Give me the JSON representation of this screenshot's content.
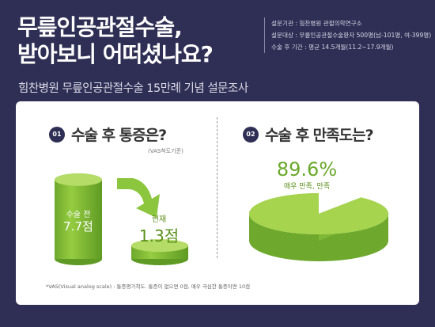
{
  "header": {
    "title_line1": "무릎인공관절수술,",
    "title_line2": "받아보니 어떠셨나요?",
    "subtitle": "힘찬병원 무릎인공관절수술 15만례 기념 설문조사",
    "meta": [
      "설문기관 : 힘찬병원 관절의학연구소",
      "설문대상 : 무릎인공관절수술환자 500명(남-101명, 여-399명)",
      "수술 후 기간 : 평균 14.5개월(11.2~17.9개월)"
    ]
  },
  "colors": {
    "background": "#2f2f56",
    "accent_green": "#8cc63f",
    "text_dark": "#333333"
  },
  "q1": {
    "badge": "01",
    "title": "수술 후 통증은?",
    "note": "(VAS척도기준)",
    "before_label": "수술 전",
    "before_value": "7.7점",
    "after_label": "현재",
    "after_value": "1.3점"
  },
  "q2": {
    "badge": "02",
    "title": "수술 후 만족도는?",
    "value": "89.6%",
    "label": "매우 만족, 만족"
  },
  "footnote": "*VAS(Visual analog scale) : 통증평가척도. 통증이 없으면 0점, 매우 극심한 통증이면 10점",
  "chart_data": [
    {
      "type": "bar",
      "title": "수술 후 통증은?",
      "subtitle": "(VAS척도기준)",
      "categories": [
        "수술 전",
        "현재"
      ],
      "values": [
        7.7,
        1.3
      ],
      "ylim": [
        0,
        10
      ]
    },
    {
      "type": "pie",
      "title": "수술 후 만족도는?",
      "labels": [
        "매우 만족, 만족",
        ""
      ],
      "values": [
        89.6,
        10.4
      ]
    }
  ]
}
